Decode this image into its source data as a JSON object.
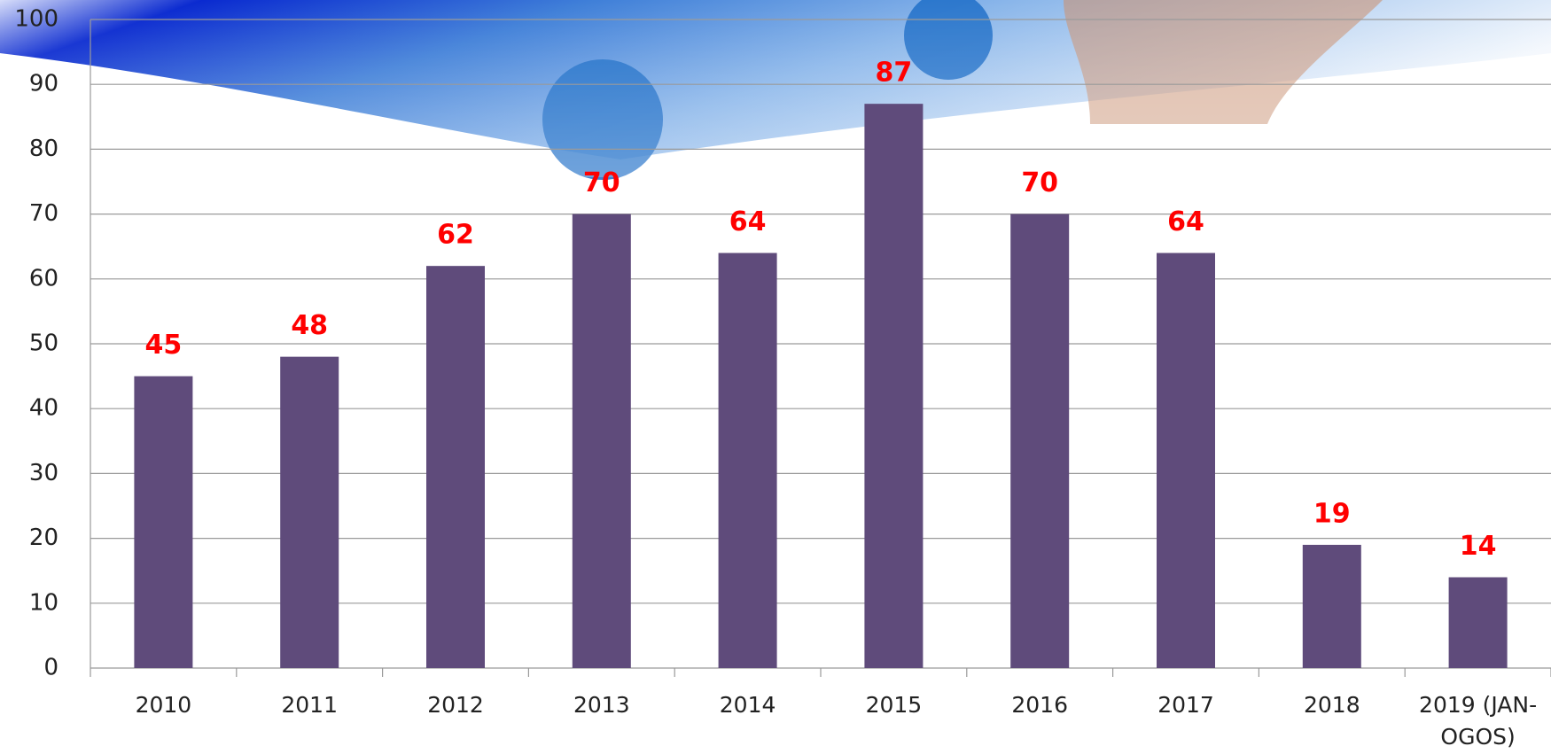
{
  "chart_data": {
    "type": "bar",
    "categories": [
      "2010",
      "2011",
      "2012",
      "2013",
      "2014",
      "2015",
      "2016",
      "2017",
      "2018",
      "2019 (JAN-OGOS)"
    ],
    "values": [
      45,
      48,
      62,
      70,
      64,
      87,
      70,
      64,
      19,
      14
    ],
    "color": "#5f4b7b",
    "label_color": "#ff0000",
    "ylim": [
      0,
      100
    ],
    "yticks": [
      0,
      10,
      20,
      30,
      40,
      50,
      60,
      70,
      80,
      90,
      100
    ],
    "grid": true
  }
}
